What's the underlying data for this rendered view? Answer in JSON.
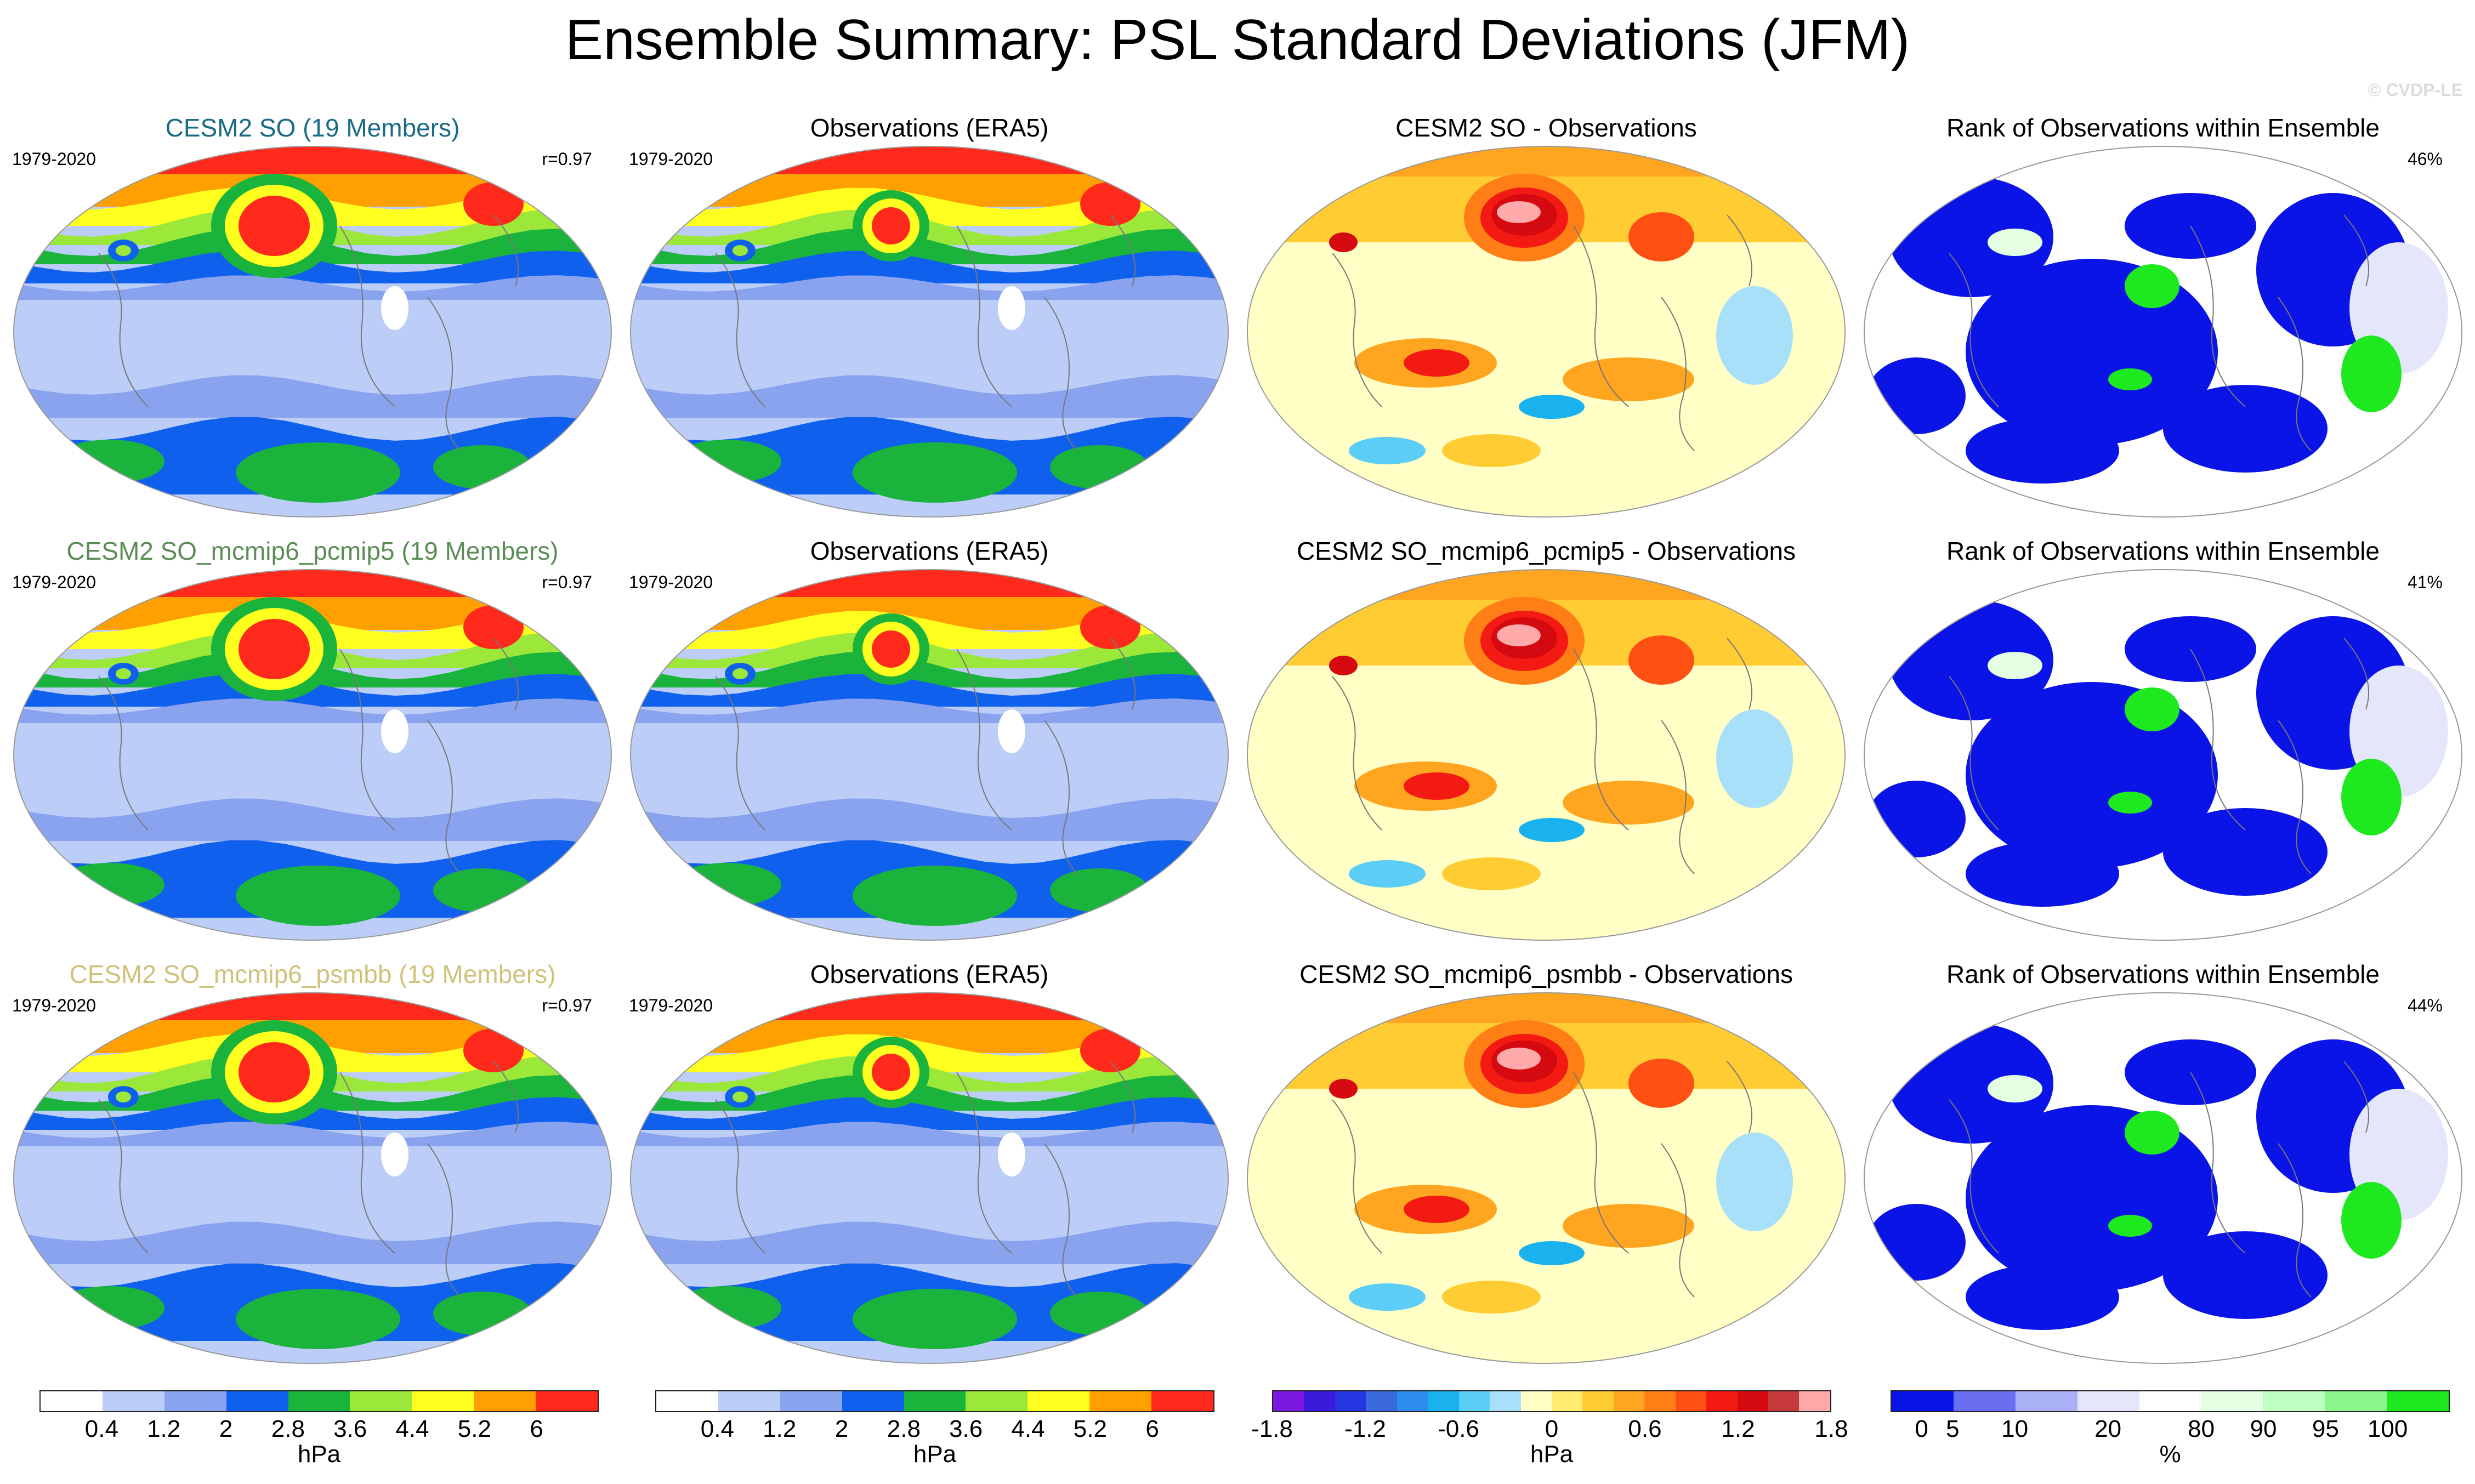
{
  "title": "Ensemble Summary: PSL Standard Deviations (JFM)",
  "watermark": "© CVDP-LE",
  "colors": {
    "row_titles": [
      "#1a6b86",
      "#5d8d57",
      "#cfc27a"
    ],
    "std_scale": [
      "#ffffff",
      "#bccdf7",
      "#8aa3ef",
      "#1060ee",
      "#1ab43c",
      "#9ce83a",
      "#ffff20",
      "#ffa000",
      "#ff2a1c"
    ],
    "diff_scale": [
      "#7a18df",
      "#3a1adb",
      "#2436e0",
      "#3a6ade",
      "#2d8ef0",
      "#1ab2ee",
      "#5ccdf7",
      "#a7e0f8",
      "#ffffc6",
      "#ffec70",
      "#ffcc33",
      "#ffa51f",
      "#ff7f16",
      "#ff5014",
      "#f31a14",
      "#d40a10",
      "#c43a3a",
      "#ffaaaa"
    ],
    "rank_scale": [
      "#0a14e6",
      "#6a6ef0",
      "#aab0f4",
      "#e4e6fc",
      "#ffffff",
      "#e4ffe4",
      "#bfffbf",
      "#8cf58c",
      "#1ee81e"
    ]
  },
  "chart_data": [
    {
      "type": "heatmap",
      "panel": "row1-model",
      "title": "CESM2 SO (19 Members)",
      "period": "1979-2020",
      "stat_label": "r=0.97",
      "r": 0.97,
      "units": "hPa"
    },
    {
      "type": "heatmap",
      "panel": "row1-obs",
      "title": "Observations (ERA5)",
      "period": "1979-2020",
      "units": "hPa"
    },
    {
      "type": "heatmap",
      "panel": "row1-diff",
      "title": "CESM2 SO - Observations",
      "units": "hPa"
    },
    {
      "type": "heatmap",
      "panel": "row1-rank",
      "title": "Rank of Observations within Ensemble",
      "stat_label": "46%",
      "percent": 46,
      "units": "%"
    },
    {
      "type": "heatmap",
      "panel": "row2-model",
      "title": "CESM2 SO_mcmip6_pcmip5 (19 Members)",
      "period": "1979-2020",
      "stat_label": "r=0.97",
      "r": 0.97,
      "units": "hPa"
    },
    {
      "type": "heatmap",
      "panel": "row2-obs",
      "title": "Observations (ERA5)",
      "period": "1979-2020",
      "units": "hPa"
    },
    {
      "type": "heatmap",
      "panel": "row2-diff",
      "title": "CESM2 SO_mcmip6_pcmip5 - Observations",
      "units": "hPa"
    },
    {
      "type": "heatmap",
      "panel": "row2-rank",
      "title": "Rank of Observations within Ensemble",
      "stat_label": "41%",
      "percent": 41,
      "units": "%"
    },
    {
      "type": "heatmap",
      "panel": "row3-model",
      "title": "CESM2 SO_mcmip6_psmbb (19 Members)",
      "period": "1979-2020",
      "stat_label": "r=0.97",
      "r": 0.97,
      "units": "hPa"
    },
    {
      "type": "heatmap",
      "panel": "row3-obs",
      "title": "Observations (ERA5)",
      "period": "1979-2020",
      "units": "hPa"
    },
    {
      "type": "heatmap",
      "panel": "row3-diff",
      "title": "CESM2 SO_mcmip6_psmbb - Observations",
      "units": "hPa"
    },
    {
      "type": "heatmap",
      "panel": "row3-rank",
      "title": "Rank of Observations within Ensemble",
      "stat_label": "44%",
      "percent": 44,
      "units": "%"
    }
  ],
  "colorbars": [
    {
      "name": "std",
      "ticks": [
        "0.4",
        "1.2",
        "2",
        "2.8",
        "3.6",
        "4.4",
        "5.2",
        "6"
      ],
      "tick_values": [
        0.4,
        1.2,
        2,
        2.8,
        3.6,
        4.4,
        5.2,
        6
      ],
      "units": "hPa"
    },
    {
      "name": "std",
      "ticks": [
        "0.4",
        "1.2",
        "2",
        "2.8",
        "3.6",
        "4.4",
        "5.2",
        "6"
      ],
      "tick_values": [
        0.4,
        1.2,
        2,
        2.8,
        3.6,
        4.4,
        5.2,
        6
      ],
      "units": "hPa"
    },
    {
      "name": "diff",
      "ticks": [
        "-1.8",
        "-1.2",
        "-0.6",
        "0",
        "0.6",
        "1.2",
        "1.8"
      ],
      "tick_values": [
        -1.8,
        -1.2,
        -0.6,
        0,
        0.6,
        1.2,
        1.8
      ],
      "units": "hPa"
    },
    {
      "name": "rank",
      "ticks": [
        "0",
        "5",
        "10",
        "20",
        "80",
        "90",
        "95",
        "100"
      ],
      "tick_values": [
        0,
        5,
        10,
        20,
        80,
        90,
        95,
        100
      ],
      "units": "%"
    }
  ]
}
